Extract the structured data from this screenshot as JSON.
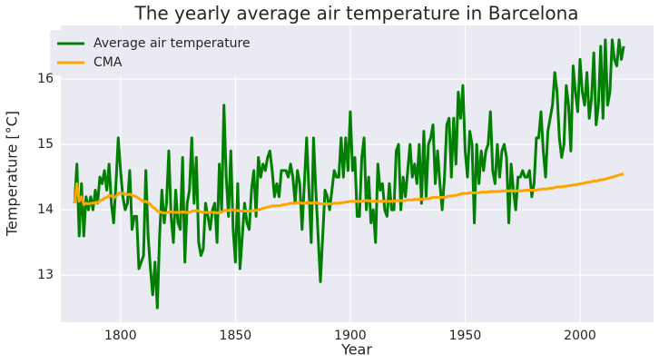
{
  "chart_data": {
    "type": "line",
    "title": "The yearly average air temperature in Barcelona",
    "x_label": "Year",
    "y_label": "Temperature [°C]",
    "xlim": [
      1774,
      2032
    ],
    "ylim": [
      12.28,
      16.82
    ],
    "xticks": [
      1800,
      1850,
      1900,
      1950,
      2000
    ],
    "yticks": [
      13,
      14,
      15,
      16
    ],
    "grid": true,
    "legend": "upper left",
    "x": [
      1780,
      1781,
      1782,
      1783,
      1784,
      1785,
      1786,
      1787,
      1788,
      1789,
      1790,
      1791,
      1792,
      1793,
      1794,
      1795,
      1796,
      1797,
      1798,
      1799,
      1800,
      1801,
      1802,
      1803,
      1804,
      1805,
      1806,
      1807,
      1808,
      1809,
      1810,
      1811,
      1812,
      1813,
      1814,
      1815,
      1816,
      1817,
      1818,
      1819,
      1820,
      1821,
      1822,
      1823,
      1824,
      1825,
      1826,
      1827,
      1828,
      1829,
      1830,
      1831,
      1832,
      1833,
      1834,
      1835,
      1836,
      1837,
      1838,
      1839,
      1840,
      1841,
      1842,
      1843,
      1844,
      1845,
      1846,
      1847,
      1848,
      1849,
      1850,
      1851,
      1852,
      1853,
      1854,
      1855,
      1856,
      1857,
      1858,
      1859,
      1860,
      1861,
      1862,
      1863,
      1864,
      1865,
      1866,
      1867,
      1868,
      1869,
      1870,
      1871,
      1872,
      1873,
      1874,
      1875,
      1876,
      1877,
      1878,
      1879,
      1880,
      1881,
      1882,
      1883,
      1884,
      1885,
      1886,
      1887,
      1888,
      1889,
      1890,
      1891,
      1892,
      1893,
      1894,
      1895,
      1896,
      1897,
      1898,
      1899,
      1900,
      1901,
      1902,
      1903,
      1904,
      1905,
      1906,
      1907,
      1908,
      1909,
      1910,
      1911,
      1912,
      1913,
      1914,
      1915,
      1916,
      1917,
      1918,
      1919,
      1920,
      1921,
      1922,
      1923,
      1924,
      1925,
      1926,
      1927,
      1928,
      1929,
      1930,
      1931,
      1932,
      1933,
      1934,
      1935,
      1936,
      1937,
      1938,
      1939,
      1940,
      1941,
      1942,
      1943,
      1944,
      1945,
      1946,
      1947,
      1948,
      1949,
      1950,
      1951,
      1952,
      1953,
      1954,
      1955,
      1956,
      1957,
      1958,
      1959,
      1960,
      1961,
      1962,
      1963,
      1964,
      1965,
      1966,
      1967,
      1968,
      1969,
      1970,
      1971,
      1972,
      1973,
      1974,
      1975,
      1976,
      1977,
      1978,
      1979,
      1980,
      1981,
      1982,
      1983,
      1984,
      1985,
      1986,
      1987,
      1988,
      1989,
      1990,
      1991,
      1992,
      1993,
      1994,
      1995,
      1996,
      1997,
      1998,
      1999,
      2000,
      2001,
      2002,
      2003,
      2004,
      2005,
      2006,
      2007,
      2008,
      2009,
      2010,
      2011,
      2012,
      2013,
      2014,
      2015,
      2016,
      2017,
      2018,
      2019
    ],
    "series": [
      {
        "name": "Average air temperature",
        "color": "#008000",
        "values": [
          14.1,
          14.7,
          13.6,
          14.4,
          13.6,
          14.2,
          14.0,
          14.2,
          14.0,
          14.3,
          14.1,
          14.5,
          14.4,
          14.6,
          14.3,
          14.7,
          14.1,
          13.8,
          14.4,
          15.1,
          14.6,
          14.2,
          14.0,
          14.1,
          14.6,
          13.7,
          13.9,
          13.9,
          13.1,
          13.2,
          13.3,
          14.6,
          13.6,
          13.1,
          12.7,
          13.2,
          12.5,
          13.6,
          14.3,
          13.8,
          14.1,
          14.9,
          13.9,
          13.5,
          14.3,
          13.8,
          13.7,
          14.8,
          13.2,
          14.1,
          14.3,
          15.1,
          14.1,
          14.8,
          13.5,
          13.3,
          13.4,
          14.1,
          13.9,
          13.7,
          14.0,
          14.1,
          13.5,
          14.7,
          14.0,
          15.6,
          14.5,
          13.9,
          14.9,
          13.7,
          13.2,
          14.4,
          13.1,
          13.6,
          14.1,
          13.8,
          13.7,
          14.3,
          14.6,
          13.9,
          14.8,
          14.5,
          14.7,
          14.6,
          14.8,
          14.9,
          14.6,
          14.2,
          14.4,
          14.2,
          14.6,
          14.6,
          14.6,
          14.5,
          14.7,
          14.5,
          14.1,
          14.6,
          14.4,
          13.7,
          14.4,
          15.1,
          14.3,
          13.5,
          15.1,
          14.3,
          13.6,
          12.9,
          13.6,
          14.3,
          14.2,
          14.0,
          14.3,
          14.6,
          14.5,
          14.5,
          15.1,
          14.5,
          15.1,
          14.6,
          15.5,
          14.6,
          14.8,
          13.9,
          13.9,
          14.8,
          15.1,
          14.0,
          14.5,
          13.8,
          14.0,
          13.5,
          14.7,
          14.3,
          14.4,
          14.0,
          13.9,
          14.4,
          14.0,
          14.0,
          14.9,
          15.0,
          14.0,
          14.5,
          14.2,
          14.6,
          15.0,
          14.5,
          14.7,
          14.4,
          15.0,
          14.1,
          15.2,
          14.2,
          15.0,
          15.1,
          15.3,
          14.4,
          14.9,
          14.4,
          14.0,
          14.5,
          15.3,
          15.4,
          14.5,
          15.4,
          14.7,
          15.8,
          15.4,
          15.9,
          14.9,
          14.5,
          15.2,
          15.0,
          13.8,
          15.0,
          14.4,
          14.9,
          14.6,
          14.9,
          15.0,
          15.5,
          14.6,
          14.4,
          15.0,
          14.5,
          14.9,
          15.0,
          14.8,
          13.8,
          14.7,
          14.3,
          14.0,
          14.5,
          14.5,
          14.6,
          14.5,
          14.5,
          14.6,
          14.2,
          14.4,
          15.1,
          15.1,
          15.5,
          14.9,
          14.5,
          15.2,
          15.4,
          15.6,
          16.1,
          15.8,
          15.1,
          14.8,
          15.0,
          15.9,
          15.6,
          14.9,
          16.2,
          15.8,
          15.5,
          16.3,
          15.8,
          15.6,
          16.1,
          15.4,
          15.7,
          16.4,
          15.3,
          15.6,
          16.5,
          15.4,
          16.6,
          15.6,
          15.8,
          16.6,
          16.3,
          16.2,
          16.6,
          16.3,
          16.5
        ]
      },
      {
        "name": "CMA",
        "color": "#ffa500",
        "values": [
          14.1,
          14.4,
          14.13,
          14.2,
          14.08,
          14.1,
          14.09,
          14.1,
          14.1,
          14.11,
          14.11,
          14.14,
          14.15,
          14.18,
          14.19,
          14.22,
          14.21,
          14.19,
          14.2,
          14.25,
          14.26,
          14.25,
          14.24,
          14.23,
          14.24,
          14.22,
          14.21,
          14.2,
          14.17,
          14.15,
          14.12,
          14.13,
          14.11,
          14.08,
          14.04,
          14.02,
          13.98,
          13.97,
          13.96,
          13.95,
          13.95,
          13.97,
          13.97,
          13.96,
          13.96,
          13.96,
          13.96,
          13.97,
          13.96,
          13.96,
          13.96,
          13.98,
          13.98,
          13.99,
          13.98,
          13.97,
          13.96,
          13.96,
          13.96,
          13.96,
          13.96,
          13.96,
          13.95,
          13.96,
          13.96,
          13.99,
          13.99,
          13.99,
          14.0,
          14.0,
          13.99,
          13.99,
          13.98,
          13.98,
          13.98,
          13.98,
          13.98,
          13.98,
          13.99,
          13.99,
          14.0,
          14.01,
          14.02,
          14.03,
          14.04,
          14.05,
          14.06,
          14.06,
          14.06,
          14.06,
          14.07,
          14.08,
          14.08,
          14.09,
          14.1,
          14.1,
          14.1,
          14.11,
          14.11,
          14.1,
          14.1,
          14.11,
          14.11,
          14.1,
          14.11,
          14.11,
          14.1,
          14.09,
          14.09,
          14.09,
          14.09,
          14.09,
          14.09,
          14.1,
          14.1,
          14.1,
          14.11,
          14.11,
          14.12,
          14.12,
          14.13,
          14.13,
          14.13,
          14.13,
          14.13,
          14.13,
          14.14,
          14.14,
          14.14,
          14.13,
          14.13,
          14.13,
          14.13,
          14.13,
          14.13,
          14.13,
          14.13,
          14.13,
          14.13,
          14.13,
          14.14,
          14.14,
          14.14,
          14.14,
          14.14,
          14.15,
          14.15,
          14.15,
          14.16,
          14.16,
          14.16,
          14.16,
          14.17,
          14.17,
          14.17,
          14.18,
          14.19,
          14.19,
          14.19,
          14.19,
          14.19,
          14.19,
          14.2,
          14.21,
          14.21,
          14.22,
          14.22,
          14.23,
          14.24,
          14.25,
          14.25,
          14.25,
          14.26,
          14.26,
          14.26,
          14.26,
          14.26,
          14.27,
          14.27,
          14.27,
          14.27,
          14.28,
          14.28,
          14.28,
          14.28,
          14.28,
          14.29,
          14.29,
          14.29,
          14.29,
          14.29,
          14.29,
          14.29,
          14.29,
          14.29,
          14.29,
          14.3,
          14.3,
          14.3,
          14.3,
          14.3,
          14.3,
          14.31,
          14.31,
          14.32,
          14.32,
          14.32,
          14.33,
          14.33,
          14.34,
          14.35,
          14.35,
          14.35,
          14.36,
          14.36,
          14.37,
          14.37,
          14.38,
          14.38,
          14.39,
          14.4,
          14.4,
          14.41,
          14.42,
          14.42,
          14.43,
          14.44,
          14.44,
          14.45,
          14.46,
          14.46,
          14.47,
          14.48,
          14.49,
          14.5,
          14.51,
          14.52,
          14.53,
          14.54,
          14.55
        ]
      }
    ]
  }
}
